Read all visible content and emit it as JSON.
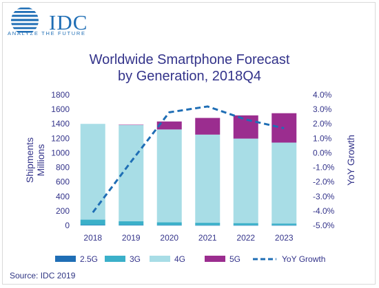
{
  "logo": {
    "text": "IDC",
    "tagline": "ANALYZE THE FUTURE",
    "color": "#1f6eb5"
  },
  "title_line1": "Worldwide Smartphone Forecast",
  "title_line2": "by Generation, 2018Q4",
  "source": "Source: IDC 2019",
  "chart_data": {
    "type": "bar",
    "stacked": true,
    "categories": [
      "2018",
      "2019",
      "2020",
      "2021",
      "2022",
      "2023"
    ],
    "series": [
      {
        "name": "2.5G",
        "kind": "bar",
        "color": "#1f6eb5",
        "values": [
          5,
          4,
          3,
          2,
          2,
          2
        ]
      },
      {
        "name": "3G",
        "kind": "bar",
        "color": "#3bb0c9",
        "values": [
          75,
          55,
          40,
          35,
          30,
          25
        ]
      },
      {
        "name": "4G",
        "kind": "bar",
        "color": "#a8dde6",
        "values": [
          1320,
          1325,
          1280,
          1215,
          1165,
          1115
        ]
      },
      {
        "name": "5G",
        "kind": "bar",
        "color": "#9b2d8f",
        "values": [
          0,
          5,
          110,
          230,
          320,
          405
        ]
      },
      {
        "name": "YoY Growth",
        "kind": "line",
        "axis": "right",
        "color": "#1f6eb5",
        "dashed": true,
        "values": [
          -4.1,
          -0.6,
          2.8,
          3.2,
          2.3,
          1.7
        ]
      }
    ],
    "ylabel": "Shipments Millions",
    "ylabel_lines": [
      "Shipments",
      "Millions"
    ],
    "y2label": "YoY Growth",
    "ylim": [
      0,
      1800
    ],
    "yticks": [
      0,
      200,
      400,
      600,
      800,
      1000,
      1200,
      1400,
      1600,
      1800
    ],
    "y2lim": [
      -5,
      4
    ],
    "y2ticks": [
      "-5.0%",
      "-4.0%",
      "-3.0%",
      "-2.0%",
      "-1.0%",
      "0.0%",
      "1.0%",
      "2.0%",
      "3.0%",
      "4.0%"
    ],
    "grid": false,
    "legend": "bottom",
    "axis_color": "#33338a"
  }
}
